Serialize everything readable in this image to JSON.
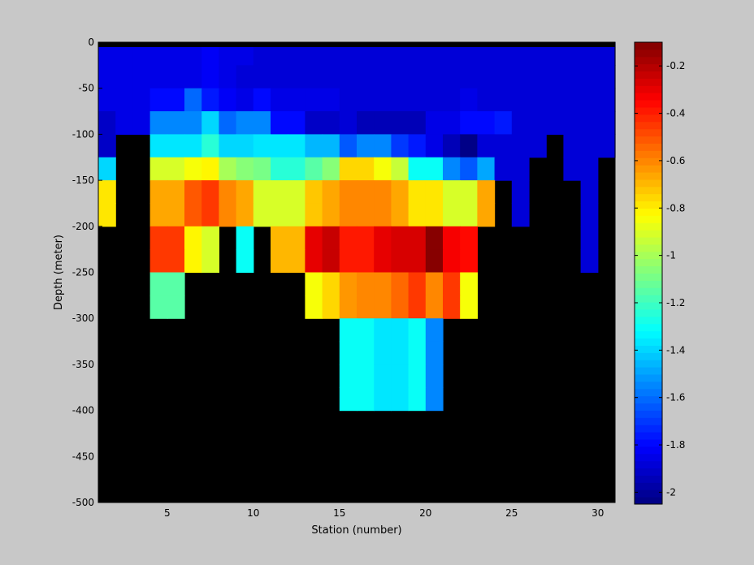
{
  "chart_data": {
    "type": "heatmap",
    "title": "",
    "xlabel": "Station (number)",
    "ylabel": "Depth (meter)",
    "xlim": [
      1,
      31
    ],
    "ylim": [
      -500,
      0
    ],
    "xticks": [
      5,
      10,
      15,
      20,
      25,
      30
    ],
    "yticks": [
      0,
      -50,
      -100,
      -150,
      -200,
      -250,
      -300,
      -350,
      -400,
      -450,
      -500
    ],
    "colorbar": {
      "colormap": "jet",
      "clim": [
        -2.05,
        -0.1
      ],
      "ticks": [
        -0.2,
        -0.4,
        -0.6,
        -0.8,
        -1,
        -1.2,
        -1.4,
        -1.6,
        -1.8,
        -2
      ]
    },
    "missing_color": "#000000",
    "cell_depth_step": 25,
    "depth_levels": [
      0,
      -25,
      -50,
      -75,
      -100,
      -125,
      -150,
      -175,
      -200,
      -225,
      -250,
      -275,
      -300,
      -325,
      -350,
      -375,
      -400,
      -425,
      -450,
      -475,
      -500
    ],
    "stations": [
      1,
      2,
      3,
      4,
      5,
      6,
      7,
      8,
      9,
      10,
      11,
      12,
      13,
      14,
      15,
      16,
      17,
      18,
      19,
      20,
      21,
      22,
      23,
      24,
      25,
      26,
      27,
      28,
      29,
      30
    ],
    "values": [
      [
        -1.85,
        -1.85,
        -1.85,
        -1.85,
        -1.85,
        -1.85,
        -1.82,
        -1.85,
        -1.85,
        -1.87,
        -1.87,
        -1.87,
        -1.87,
        -1.87,
        -1.87,
        -1.87,
        -1.87,
        -1.87,
        -1.87,
        -1.87,
        -1.87,
        -1.87,
        -1.87,
        -1.87,
        -1.87,
        -1.87,
        -1.87,
        -1.87,
        -1.87,
        -1.87
      ],
      [
        -1.85,
        -1.85,
        -1.85,
        -1.85,
        -1.85,
        -1.85,
        -1.82,
        -1.85,
        -1.87,
        -1.87,
        -1.87,
        -1.87,
        -1.87,
        -1.87,
        -1.87,
        -1.87,
        -1.87,
        -1.87,
        -1.87,
        -1.87,
        -1.87,
        -1.87,
        -1.87,
        -1.87,
        -1.87,
        -1.87,
        -1.87,
        -1.87,
        -1.87,
        -1.87
      ],
      [
        -1.85,
        -1.85,
        -1.85,
        -1.78,
        -1.78,
        -1.6,
        -1.75,
        -1.82,
        -1.85,
        -1.8,
        -1.85,
        -1.85,
        -1.85,
        -1.85,
        -1.87,
        -1.87,
        -1.87,
        -1.87,
        -1.87,
        -1.87,
        -1.87,
        -1.85,
        -1.87,
        -1.87,
        -1.87,
        -1.87,
        -1.87,
        -1.87,
        -1.87,
        -1.87
      ],
      [
        -1.9,
        -1.85,
        -1.85,
        -1.55,
        -1.55,
        -1.55,
        -1.4,
        -1.6,
        -1.55,
        -1.55,
        -1.78,
        -1.78,
        -1.9,
        -1.9,
        -1.87,
        -1.95,
        -1.95,
        -1.95,
        -1.95,
        -1.85,
        -1.85,
        -1.8,
        -1.8,
        -1.75,
        -1.87,
        -1.87,
        -1.87,
        -1.87,
        -1.87,
        -1.87
      ],
      [
        -1.9,
        null,
        null,
        -1.35,
        -1.35,
        -1.35,
        -1.25,
        -1.4,
        -1.4,
        -1.35,
        -1.35,
        -1.35,
        -1.45,
        -1.45,
        -1.65,
        -1.55,
        -1.55,
        -1.7,
        -1.75,
        -1.85,
        -1.95,
        -2.05,
        -1.87,
        -1.87,
        -1.87,
        -1.87,
        null,
        -1.87,
        -1.87,
        -1.87
      ],
      [
        -1.4,
        null,
        null,
        -0.92,
        -0.92,
        -0.85,
        -0.82,
        -1.0,
        -1.05,
        -1.1,
        -1.25,
        -1.25,
        -1.15,
        -1.05,
        -0.75,
        -0.75,
        -0.85,
        -0.95,
        -1.3,
        -1.3,
        -1.55,
        -1.65,
        -1.5,
        -1.87,
        -1.87,
        null,
        null,
        -1.87,
        -1.87,
        null
      ],
      [
        -0.8,
        null,
        null,
        -0.65,
        -0.65,
        -0.5,
        -0.45,
        -0.6,
        -0.65,
        -0.92,
        -0.92,
        -0.92,
        -0.72,
        -0.65,
        -0.6,
        -0.6,
        -0.6,
        -0.65,
        -0.78,
        -0.78,
        -0.9,
        -0.9,
        -0.65,
        null,
        -1.87,
        null,
        null,
        null,
        -1.87,
        null
      ],
      [
        -0.8,
        null,
        null,
        -0.65,
        -0.65,
        -0.5,
        -0.45,
        -0.6,
        -0.65,
        -0.92,
        -0.92,
        -0.92,
        -0.72,
        -0.65,
        -0.6,
        -0.6,
        -0.6,
        -0.65,
        -0.78,
        -0.78,
        -0.9,
        -0.9,
        -0.65,
        null,
        -1.87,
        null,
        null,
        null,
        -1.87,
        null
      ],
      [
        null,
        null,
        null,
        -0.45,
        -0.45,
        -0.82,
        -0.92,
        null,
        -1.3,
        null,
        -0.68,
        -0.68,
        -0.3,
        -0.25,
        -0.38,
        -0.38,
        -0.3,
        -0.28,
        -0.28,
        -0.12,
        -0.32,
        -0.35,
        null,
        null,
        null,
        null,
        null,
        null,
        -1.87,
        null
      ],
      [
        null,
        null,
        null,
        -0.45,
        -0.45,
        -0.82,
        -0.92,
        null,
        -1.3,
        null,
        -0.68,
        -0.68,
        -0.3,
        -0.25,
        -0.38,
        -0.38,
        -0.3,
        -0.28,
        -0.28,
        -0.12,
        -0.32,
        -0.35,
        null,
        null,
        null,
        null,
        null,
        null,
        -1.87,
        null
      ],
      [
        null,
        null,
        null,
        -1.15,
        -1.15,
        null,
        null,
        null,
        null,
        null,
        null,
        null,
        -0.85,
        -0.75,
        -0.62,
        -0.6,
        -0.6,
        -0.55,
        -0.45,
        -0.6,
        -0.45,
        -0.85,
        null,
        null,
        null,
        null,
        null,
        null,
        null,
        null
      ],
      [
        null,
        null,
        null,
        -1.15,
        -1.15,
        null,
        null,
        null,
        null,
        null,
        null,
        null,
        -0.85,
        -0.75,
        -0.62,
        -0.6,
        -0.6,
        -0.55,
        -0.45,
        -0.6,
        -0.45,
        -0.85,
        null,
        null,
        null,
        null,
        null,
        null,
        null,
        null
      ],
      [
        null,
        null,
        null,
        null,
        null,
        null,
        null,
        null,
        null,
        null,
        null,
        null,
        null,
        null,
        -1.3,
        -1.3,
        -1.35,
        -1.35,
        -1.3,
        -1.55,
        null,
        null,
        null,
        null,
        null,
        null,
        null,
        null,
        null,
        null
      ],
      [
        null,
        null,
        null,
        null,
        null,
        null,
        null,
        null,
        null,
        null,
        null,
        null,
        null,
        null,
        -1.3,
        -1.3,
        -1.35,
        -1.35,
        -1.3,
        -1.55,
        null,
        null,
        null,
        null,
        null,
        null,
        null,
        null,
        null,
        null
      ],
      [
        null,
        null,
        null,
        null,
        null,
        null,
        null,
        null,
        null,
        null,
        null,
        null,
        null,
        null,
        -1.3,
        -1.3,
        -1.35,
        -1.35,
        -1.3,
        -1.55,
        null,
        null,
        null,
        null,
        null,
        null,
        null,
        null,
        null,
        null
      ],
      [
        null,
        null,
        null,
        null,
        null,
        null,
        null,
        null,
        null,
        null,
        null,
        null,
        null,
        null,
        -1.3,
        -1.3,
        -1.35,
        -1.35,
        -1.3,
        -1.55,
        null,
        null,
        null,
        null,
        null,
        null,
        null,
        null,
        null,
        null
      ],
      [
        null,
        null,
        null,
        null,
        null,
        null,
        null,
        null,
        null,
        null,
        null,
        null,
        null,
        null,
        null,
        null,
        null,
        null,
        null,
        null,
        null,
        null,
        null,
        null,
        null,
        null,
        null,
        null,
        null,
        null
      ],
      [
        null,
        null,
        null,
        null,
        null,
        null,
        null,
        null,
        null,
        null,
        null,
        null,
        null,
        null,
        null,
        null,
        null,
        null,
        null,
        null,
        null,
        null,
        null,
        null,
        null,
        null,
        null,
        null,
        null,
        null
      ],
      [
        null,
        null,
        null,
        null,
        null,
        null,
        null,
        null,
        null,
        null,
        null,
        null,
        null,
        null,
        null,
        null,
        null,
        null,
        null,
        null,
        null,
        null,
        null,
        null,
        null,
        null,
        null,
        null,
        null,
        null
      ],
      [
        null,
        null,
        null,
        null,
        null,
        null,
        null,
        null,
        null,
        null,
        null,
        null,
        null,
        null,
        null,
        null,
        null,
        null,
        null,
        null,
        null,
        null,
        null,
        null,
        null,
        null,
        null,
        null,
        null,
        null
      ]
    ]
  }
}
